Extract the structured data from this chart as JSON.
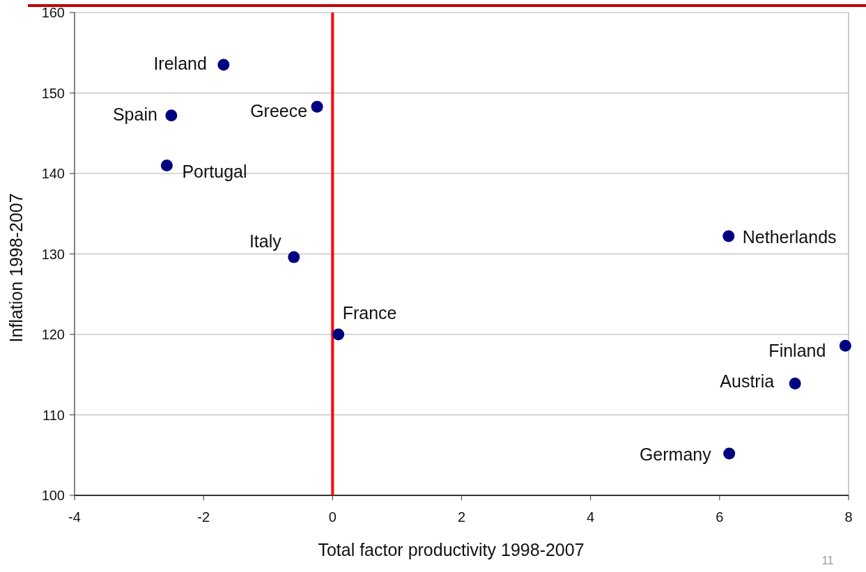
{
  "chart_data": {
    "type": "scatter",
    "xlabel": "Total factor productivity 1998-2007",
    "ylabel": "Inflation 1998-2007",
    "x": [
      -1.69,
      -2.5,
      -0.24,
      -2.57,
      -0.6,
      0.09,
      6.14,
      7.95,
      7.17,
      6.15
    ],
    "values": [
      153.5,
      147.2,
      148.3,
      141.0,
      129.6,
      120.0,
      132.2,
      118.6,
      113.9,
      105.2
    ],
    "color": "#000080",
    "marker": "circle",
    "xlim": [
      -4,
      8
    ],
    "xticks": [
      -4,
      -2,
      0,
      2,
      4,
      6,
      8
    ],
    "ylim": [
      100,
      160
    ],
    "yticks": [
      100,
      110,
      120,
      130,
      140,
      150,
      160
    ],
    "grid": "y",
    "ref_lines": [
      {
        "axis": "x",
        "value": 0,
        "color": "#ff0000"
      }
    ],
    "annotations": [
      {
        "text": "Ireland",
        "x": -1.69,
        "y": 153.5
      },
      {
        "text": "Spain",
        "x": -2.5,
        "y": 147.2
      },
      {
        "text": "Greece",
        "x": -0.24,
        "y": 148.3
      },
      {
        "text": "Portugal",
        "x": -2.57,
        "y": 141.0
      },
      {
        "text": "Italy",
        "x": -0.6,
        "y": 129.6
      },
      {
        "text": "France",
        "x": 0.09,
        "y": 120.0
      },
      {
        "text": "Netherlands",
        "x": 6.14,
        "y": 132.2
      },
      {
        "text": "Finland",
        "x": 7.95,
        "y": 118.6
      },
      {
        "text": "Austria",
        "x": 7.17,
        "y": 113.9
      },
      {
        "text": "Germany",
        "x": 6.15,
        "y": 105.2
      },
      "11"
    ]
  }
}
